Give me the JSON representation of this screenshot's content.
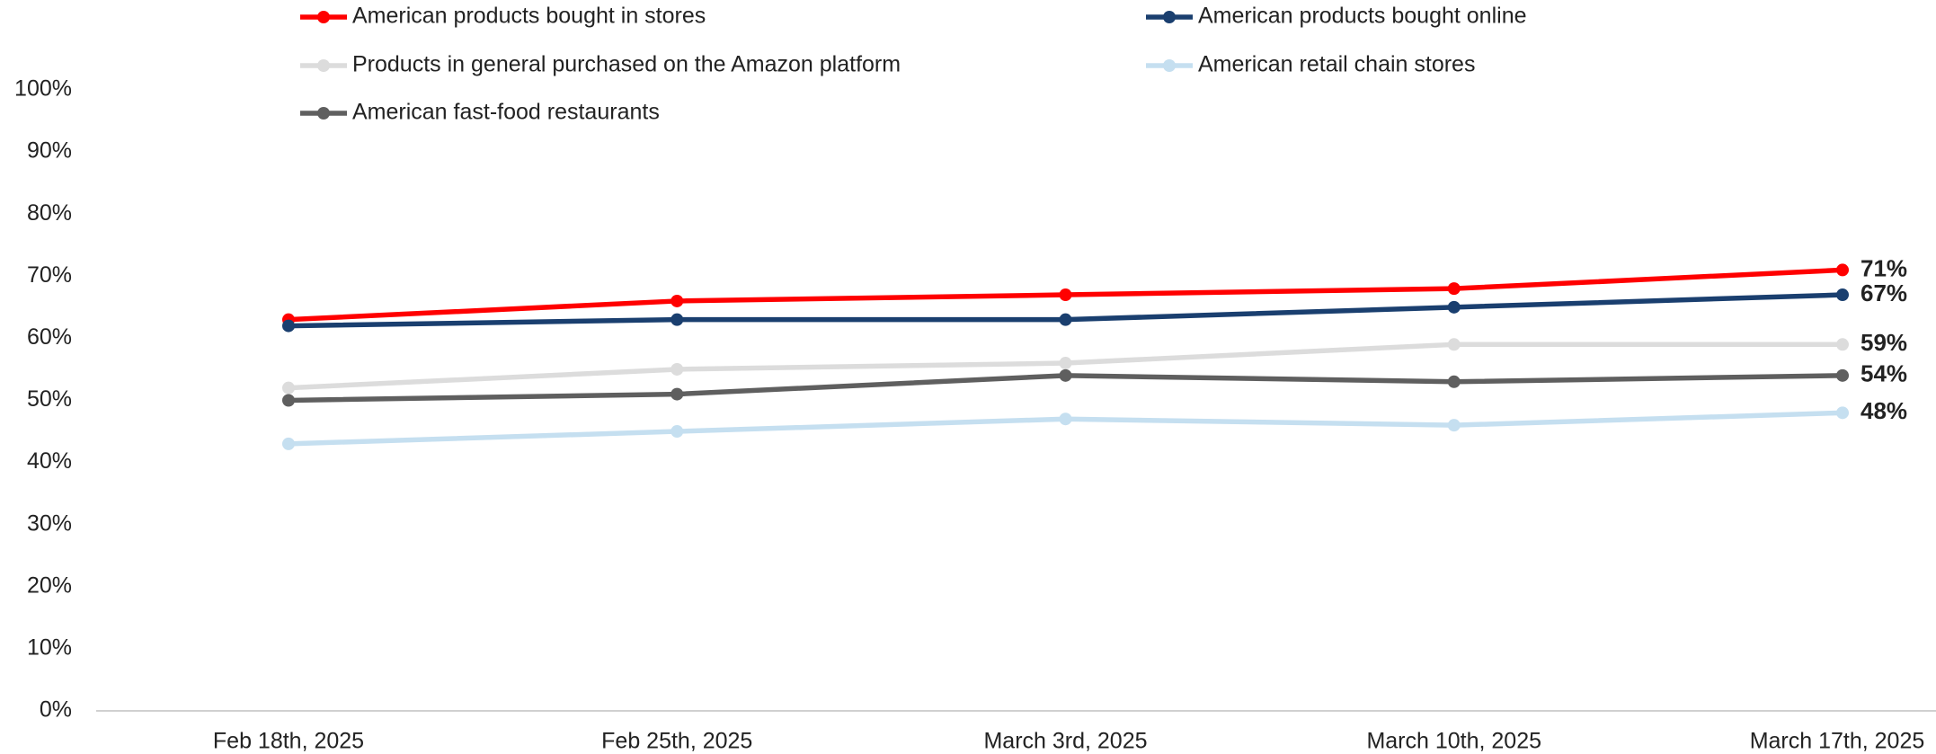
{
  "chart_data": {
    "type": "line",
    "categories": [
      "Feb 18th, 2025",
      "Feb 25th, 2025",
      "March 3rd, 2025",
      "March 10th, 2025",
      "March 17th, 2025"
    ],
    "series": [
      {
        "name": "American products bought in stores",
        "color": "#ff0000",
        "values": [
          63,
          66,
          67,
          68,
          71
        ],
        "value_labels": [
          null,
          null,
          null,
          null,
          "71%"
        ]
      },
      {
        "name": "American products bought online",
        "color": "#1a3f6f",
        "values": [
          62,
          63,
          63,
          65,
          67
        ],
        "value_labels": [
          null,
          null,
          null,
          null,
          "67%"
        ]
      },
      {
        "name": "Products in general purchased on the Amazon platform",
        "color": "#dcdcdc",
        "values": [
          52,
          55,
          56,
          59,
          59
        ],
        "value_labels": [
          null,
          null,
          null,
          null,
          "59%"
        ]
      },
      {
        "name": "American retail chain stores",
        "color": "#c5dff0",
        "values": [
          43,
          45,
          47,
          46,
          48
        ],
        "value_labels": [
          null,
          null,
          null,
          null,
          "48%"
        ]
      },
      {
        "name": "American fast-food restaurants",
        "color": "#5f5f5f",
        "values": [
          50,
          51,
          54,
          53,
          54
        ],
        "value_labels": [
          null,
          null,
          null,
          null,
          "54%"
        ]
      }
    ],
    "ylim": [
      0,
      100
    ],
    "yticks": [
      {
        "value": 0,
        "label": "0%"
      },
      {
        "value": 10,
        "label": "10%"
      },
      {
        "value": 20,
        "label": "20%"
      },
      {
        "value": 30,
        "label": "30%"
      },
      {
        "value": 40,
        "label": "40%"
      },
      {
        "value": 50,
        "label": "50%"
      },
      {
        "value": 60,
        "label": "60%"
      },
      {
        "value": 70,
        "label": "70%"
      },
      {
        "value": 80,
        "label": "80%"
      },
      {
        "value": 90,
        "label": "90%"
      },
      {
        "value": 100,
        "label": "100%"
      }
    ],
    "grid": false,
    "legend": "top"
  }
}
